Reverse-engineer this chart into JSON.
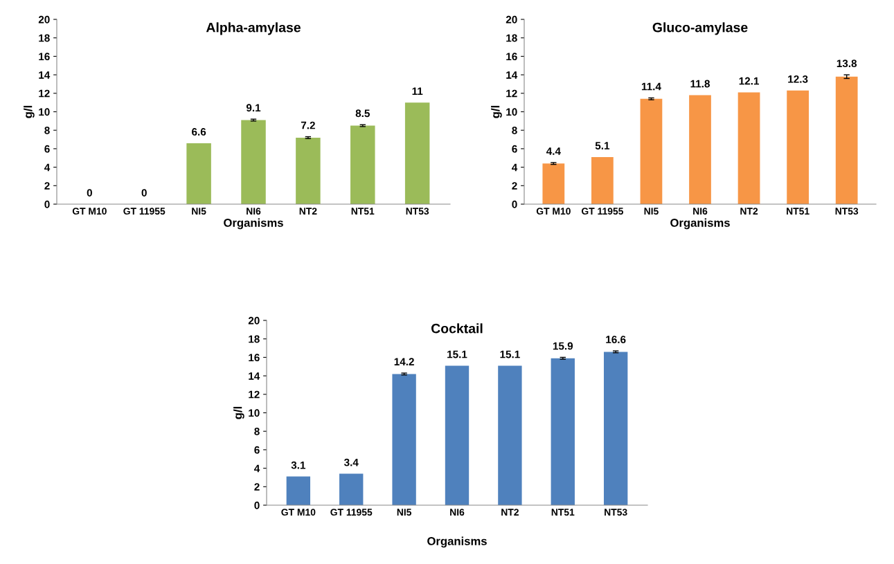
{
  "chart_data": [
    {
      "type": "bar",
      "title": "Alpha-amylase",
      "xlabel": "Organisms",
      "ylabel": "g/l",
      "categories": [
        "GT M10",
        "GT 11955",
        "NI5",
        "NI6",
        "NT2",
        "NT51",
        "NT53"
      ],
      "values": [
        0,
        0,
        6.6,
        9.1,
        7.2,
        8.5,
        11
      ],
      "errors": [
        null,
        null,
        null,
        0.1,
        0.1,
        0.1,
        null
      ],
      "color": "#9bbb59",
      "ylim": [
        0,
        20
      ],
      "yticks": [
        0,
        2,
        4,
        6,
        8,
        10,
        12,
        14,
        16,
        18,
        20
      ],
      "data_labels": true,
      "grid": false,
      "legend": false
    },
    {
      "type": "bar",
      "title": "Gluco-amylase",
      "xlabel": "Organisms",
      "ylabel": "g/l",
      "categories": [
        "GT M10",
        "GT 11955",
        "NI5",
        "NI6",
        "NT2",
        "NT51",
        "NT53"
      ],
      "values": [
        4.4,
        5.1,
        11.4,
        11.8,
        12.1,
        12.3,
        13.8
      ],
      "errors": [
        0.1,
        null,
        0.1,
        null,
        null,
        null,
        0.2
      ],
      "color": "#f79646",
      "ylim": [
        0,
        20
      ],
      "yticks": [
        0,
        2,
        4,
        6,
        8,
        10,
        12,
        14,
        16,
        18,
        20
      ],
      "data_labels": true,
      "grid": false,
      "legend": false
    },
    {
      "type": "bar",
      "title": "Cocktail",
      "xlabel": "Organisms",
      "ylabel": "g/l",
      "categories": [
        "GT M10",
        "GT 11955",
        "NI5",
        "NI6",
        "NT2",
        "NT51",
        "NT53"
      ],
      "values": [
        3.1,
        3.4,
        14.2,
        15.1,
        15.1,
        15.9,
        16.6
      ],
      "errors": [
        null,
        null,
        0.1,
        null,
        null,
        0.1,
        0.1
      ],
      "color": "#4f81bd",
      "ylim": [
        0,
        20
      ],
      "yticks": [
        0,
        2,
        4,
        6,
        8,
        10,
        12,
        14,
        16,
        18,
        20
      ],
      "data_labels": true,
      "grid": false,
      "legend": false
    }
  ]
}
